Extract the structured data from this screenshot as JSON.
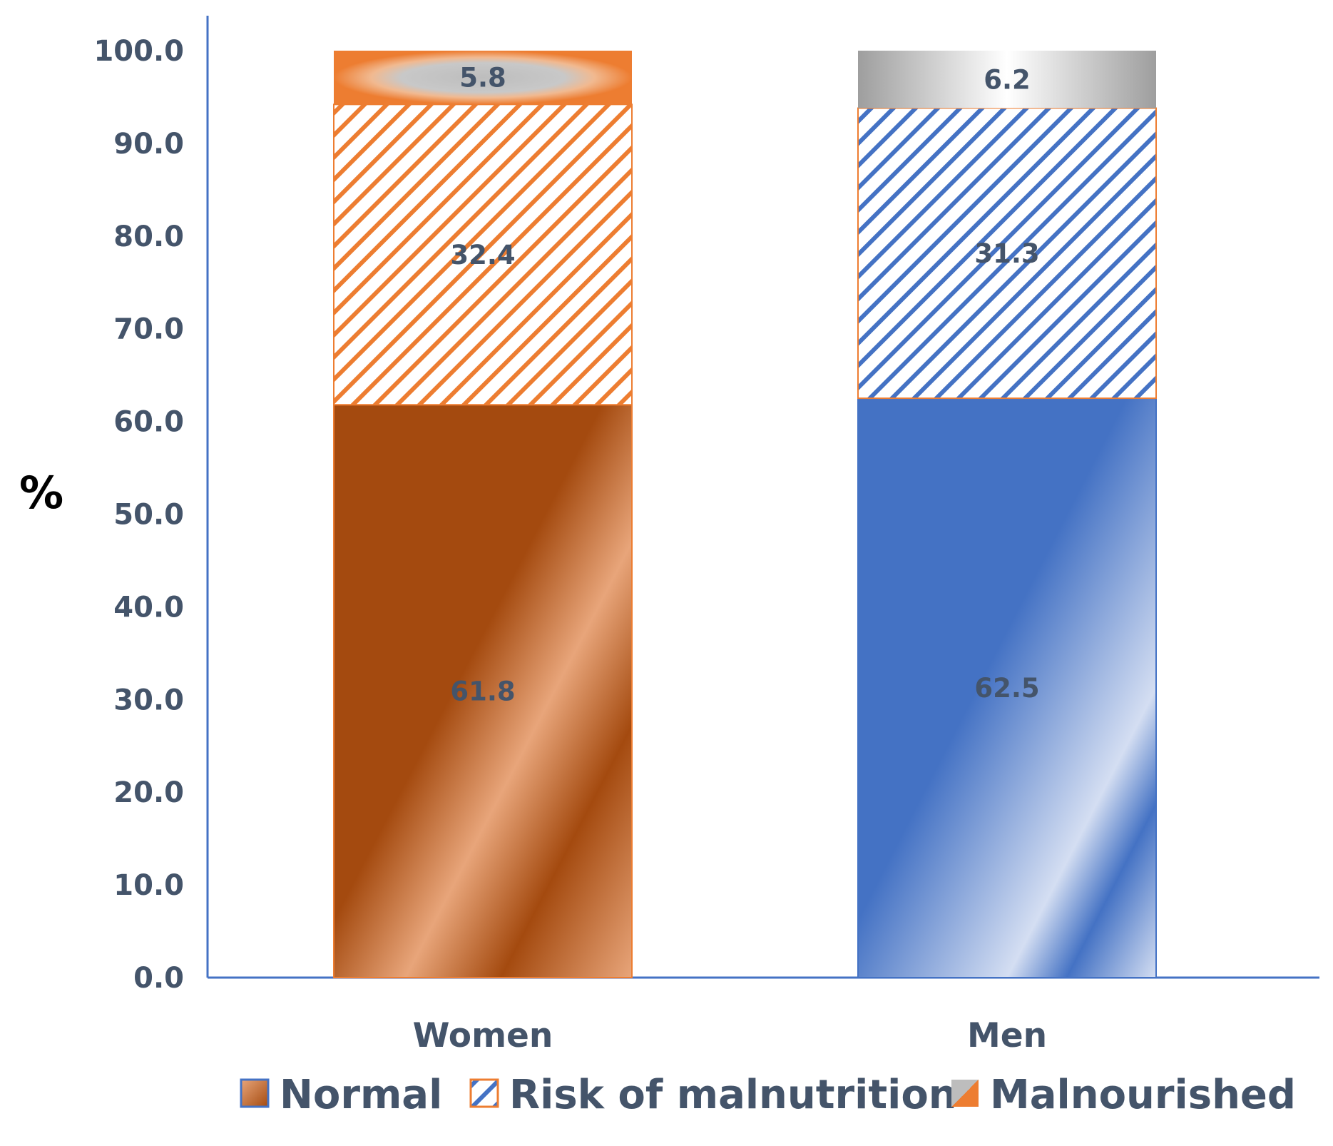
{
  "chart_data": {
    "type": "bar",
    "stacked": true,
    "categories": [
      "Women",
      "Men"
    ],
    "series": [
      {
        "name": "Normal",
        "values": [
          61.8,
          62.5
        ]
      },
      {
        "name": "Risk of malnutrition",
        "values": [
          32.4,
          31.3
        ]
      },
      {
        "name": "Malnourished",
        "values": [
          5.8,
          6.2
        ]
      }
    ],
    "data_labels": [
      [
        "61.8",
        "62.5"
      ],
      [
        "32.4",
        "31.3"
      ],
      [
        "5.8",
        "6.2"
      ]
    ],
    "title": "",
    "xlabel": "",
    "ylabel": "%",
    "ylim": [
      0,
      100
    ],
    "yticks": [
      "0.0",
      "10.0",
      "20.0",
      "30.0",
      "40.0",
      "50.0",
      "60.0",
      "70.0",
      "80.0",
      "90.0",
      "100.0"
    ],
    "legend_position": "bottom",
    "grid": false
  },
  "colors": {
    "women_dark": "#a44a0f",
    "women_light": "#e8a57a",
    "women_accent": "#ed7d31",
    "men_dark": "#4472c4",
    "men_light": "#d4def2",
    "gray_dark": "#9e9e9e",
    "gray_light": "#ffffff",
    "axis": "#4472c4",
    "text": "#44546a"
  }
}
